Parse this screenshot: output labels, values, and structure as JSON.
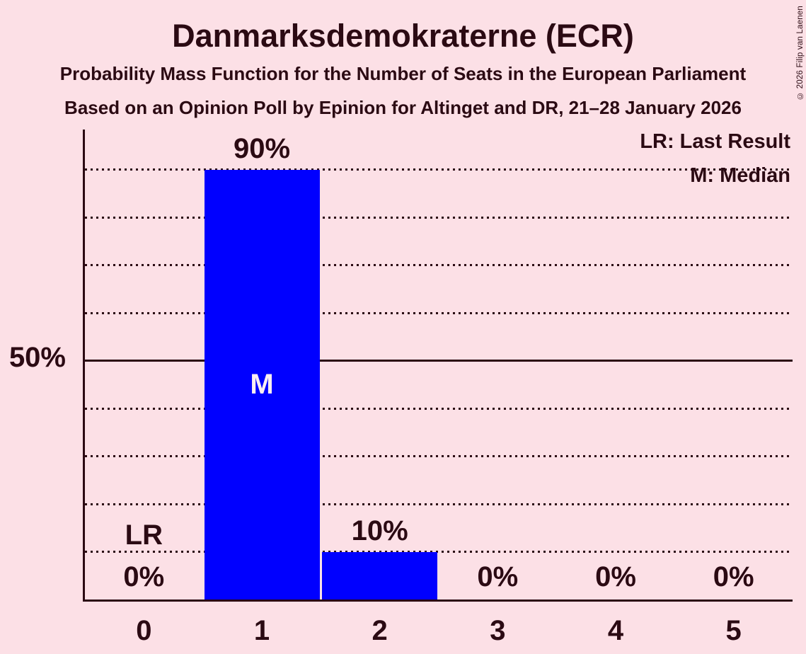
{
  "header": {
    "title": "Danmarksdemokraterne (ECR)",
    "subtitle": "Probability Mass Function for the Number of Seats in the European Parliament",
    "source": "Based on an Opinion Poll by Epinion for Altinget and DR, 21–28 January 2026",
    "copyright": "© 2026 Filip van Laenen"
  },
  "legend": {
    "last_result": "LR: Last Result",
    "median": "M: Median"
  },
  "y_axis": {
    "label": "50%"
  },
  "colors": {
    "background": "#fce0e6",
    "ink": "#2b0a13",
    "bar": "#0000ff",
    "median_label": "#fceef1"
  },
  "chart_data": {
    "type": "bar",
    "title": "Danmarksdemokraterne (ECR)",
    "categories": [
      "0",
      "1",
      "2",
      "3",
      "4",
      "5"
    ],
    "values": [
      0,
      90,
      10,
      0,
      0,
      0
    ],
    "value_labels": [
      "0%",
      "90%",
      "10%",
      "0%",
      "0%",
      "0%"
    ],
    "ylim": [
      0,
      98
    ],
    "y_tick_labels": [
      "50%"
    ],
    "gridlines": {
      "step": 10,
      "solid_at": 50,
      "style": "dotted"
    },
    "last_result_seats": "0",
    "last_result_marker": "LR",
    "median_seats": "1",
    "median_marker": "M",
    "legend_position": "top-right",
    "grid": "horizontal"
  }
}
